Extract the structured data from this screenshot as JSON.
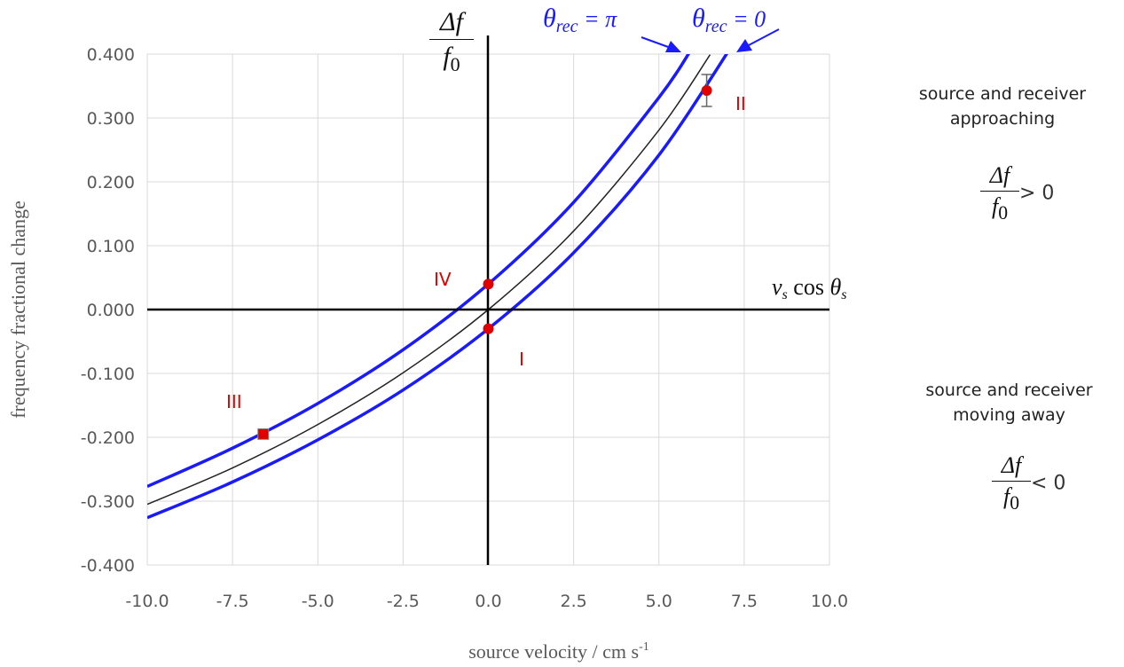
{
  "chart_data": {
    "type": "line",
    "xlabel": "source velocity / cm s",
    "xlabel_sup": "-1",
    "ylabel": "frequency fractional change",
    "xlim": [
      -10,
      10
    ],
    "ylim": [
      -0.4,
      0.4
    ],
    "x_ticks": [
      "-10.0",
      "-7.5",
      "-5.0",
      "-2.5",
      "0.0",
      "2.5",
      "5.0",
      "7.5",
      "10.0"
    ],
    "y_ticks": [
      "0.400",
      "0.300",
      "0.200",
      "0.100",
      "0.000",
      "-0.100",
      "-0.200",
      "-0.300",
      "-0.400"
    ],
    "grid": true,
    "series": [
      {
        "color": "#1a1aff",
        "x": [
          -10,
          -7.5,
          -5,
          -2.5,
          0,
          2.5,
          5,
          5.9
        ],
        "y": [
          -0.277,
          -0.217,
          -0.147,
          -0.063,
          0.04,
          0.168,
          0.332,
          0.403
        ]
      },
      {
        "color": "#222222",
        "x": [
          -10,
          -7.5,
          -5,
          -2.5,
          0,
          2.5,
          5,
          6.5
        ],
        "y": [
          -0.305,
          -0.248,
          -0.18,
          -0.099,
          0.0,
          0.123,
          0.281,
          0.399
        ]
      },
      {
        "color": "#1a1aff",
        "x": [
          -10,
          -7.5,
          -5,
          -2.5,
          0,
          2.5,
          5,
          7.2
        ],
        "y": [
          -0.326,
          -0.27,
          -0.204,
          -0.126,
          -0.03,
          0.089,
          0.242,
          0.418
        ]
      }
    ],
    "points": [
      {
        "label": "IV",
        "x": 0,
        "y": 0.04,
        "marker": "circle",
        "err": 0
      },
      {
        "label": "I",
        "x": 0,
        "y": -0.03,
        "marker": "circle",
        "err": 0
      },
      {
        "label": "II",
        "x": 6.4,
        "y": 0.343,
        "marker": "circle",
        "err": 0.025
      },
      {
        "label": "III",
        "x": -6.6,
        "y": -0.195,
        "marker": "square",
        "err": 0.006
      }
    ],
    "point_color": "#e00000",
    "annotations": {
      "curve_upper": {
        "theta": "θ",
        "sub": "rec",
        "rest": " = π"
      },
      "curve_lower": {
        "theta": "θ",
        "sub": "rec",
        "rest": " = 0"
      },
      "y_axis_fraction": {
        "num": "Δf",
        "den": "f",
        "den_sub": "0"
      },
      "x_axis_expr": {
        "v": "v",
        "v_sub": "s",
        "cos": " cos ",
        "theta": "θ",
        "theta_sub": "s"
      }
    }
  },
  "side_notes": {
    "approaching": {
      "line1": "source and receiver",
      "line2": "approaching",
      "num": "Δf",
      "den": "f",
      "den_sub": "0",
      "relation": "> 0"
    },
    "moving_away": {
      "line1": "source and receiver",
      "line2": "moving away",
      "num": "Δf",
      "den": "f",
      "den_sub": "0",
      "relation": "< 0"
    }
  }
}
